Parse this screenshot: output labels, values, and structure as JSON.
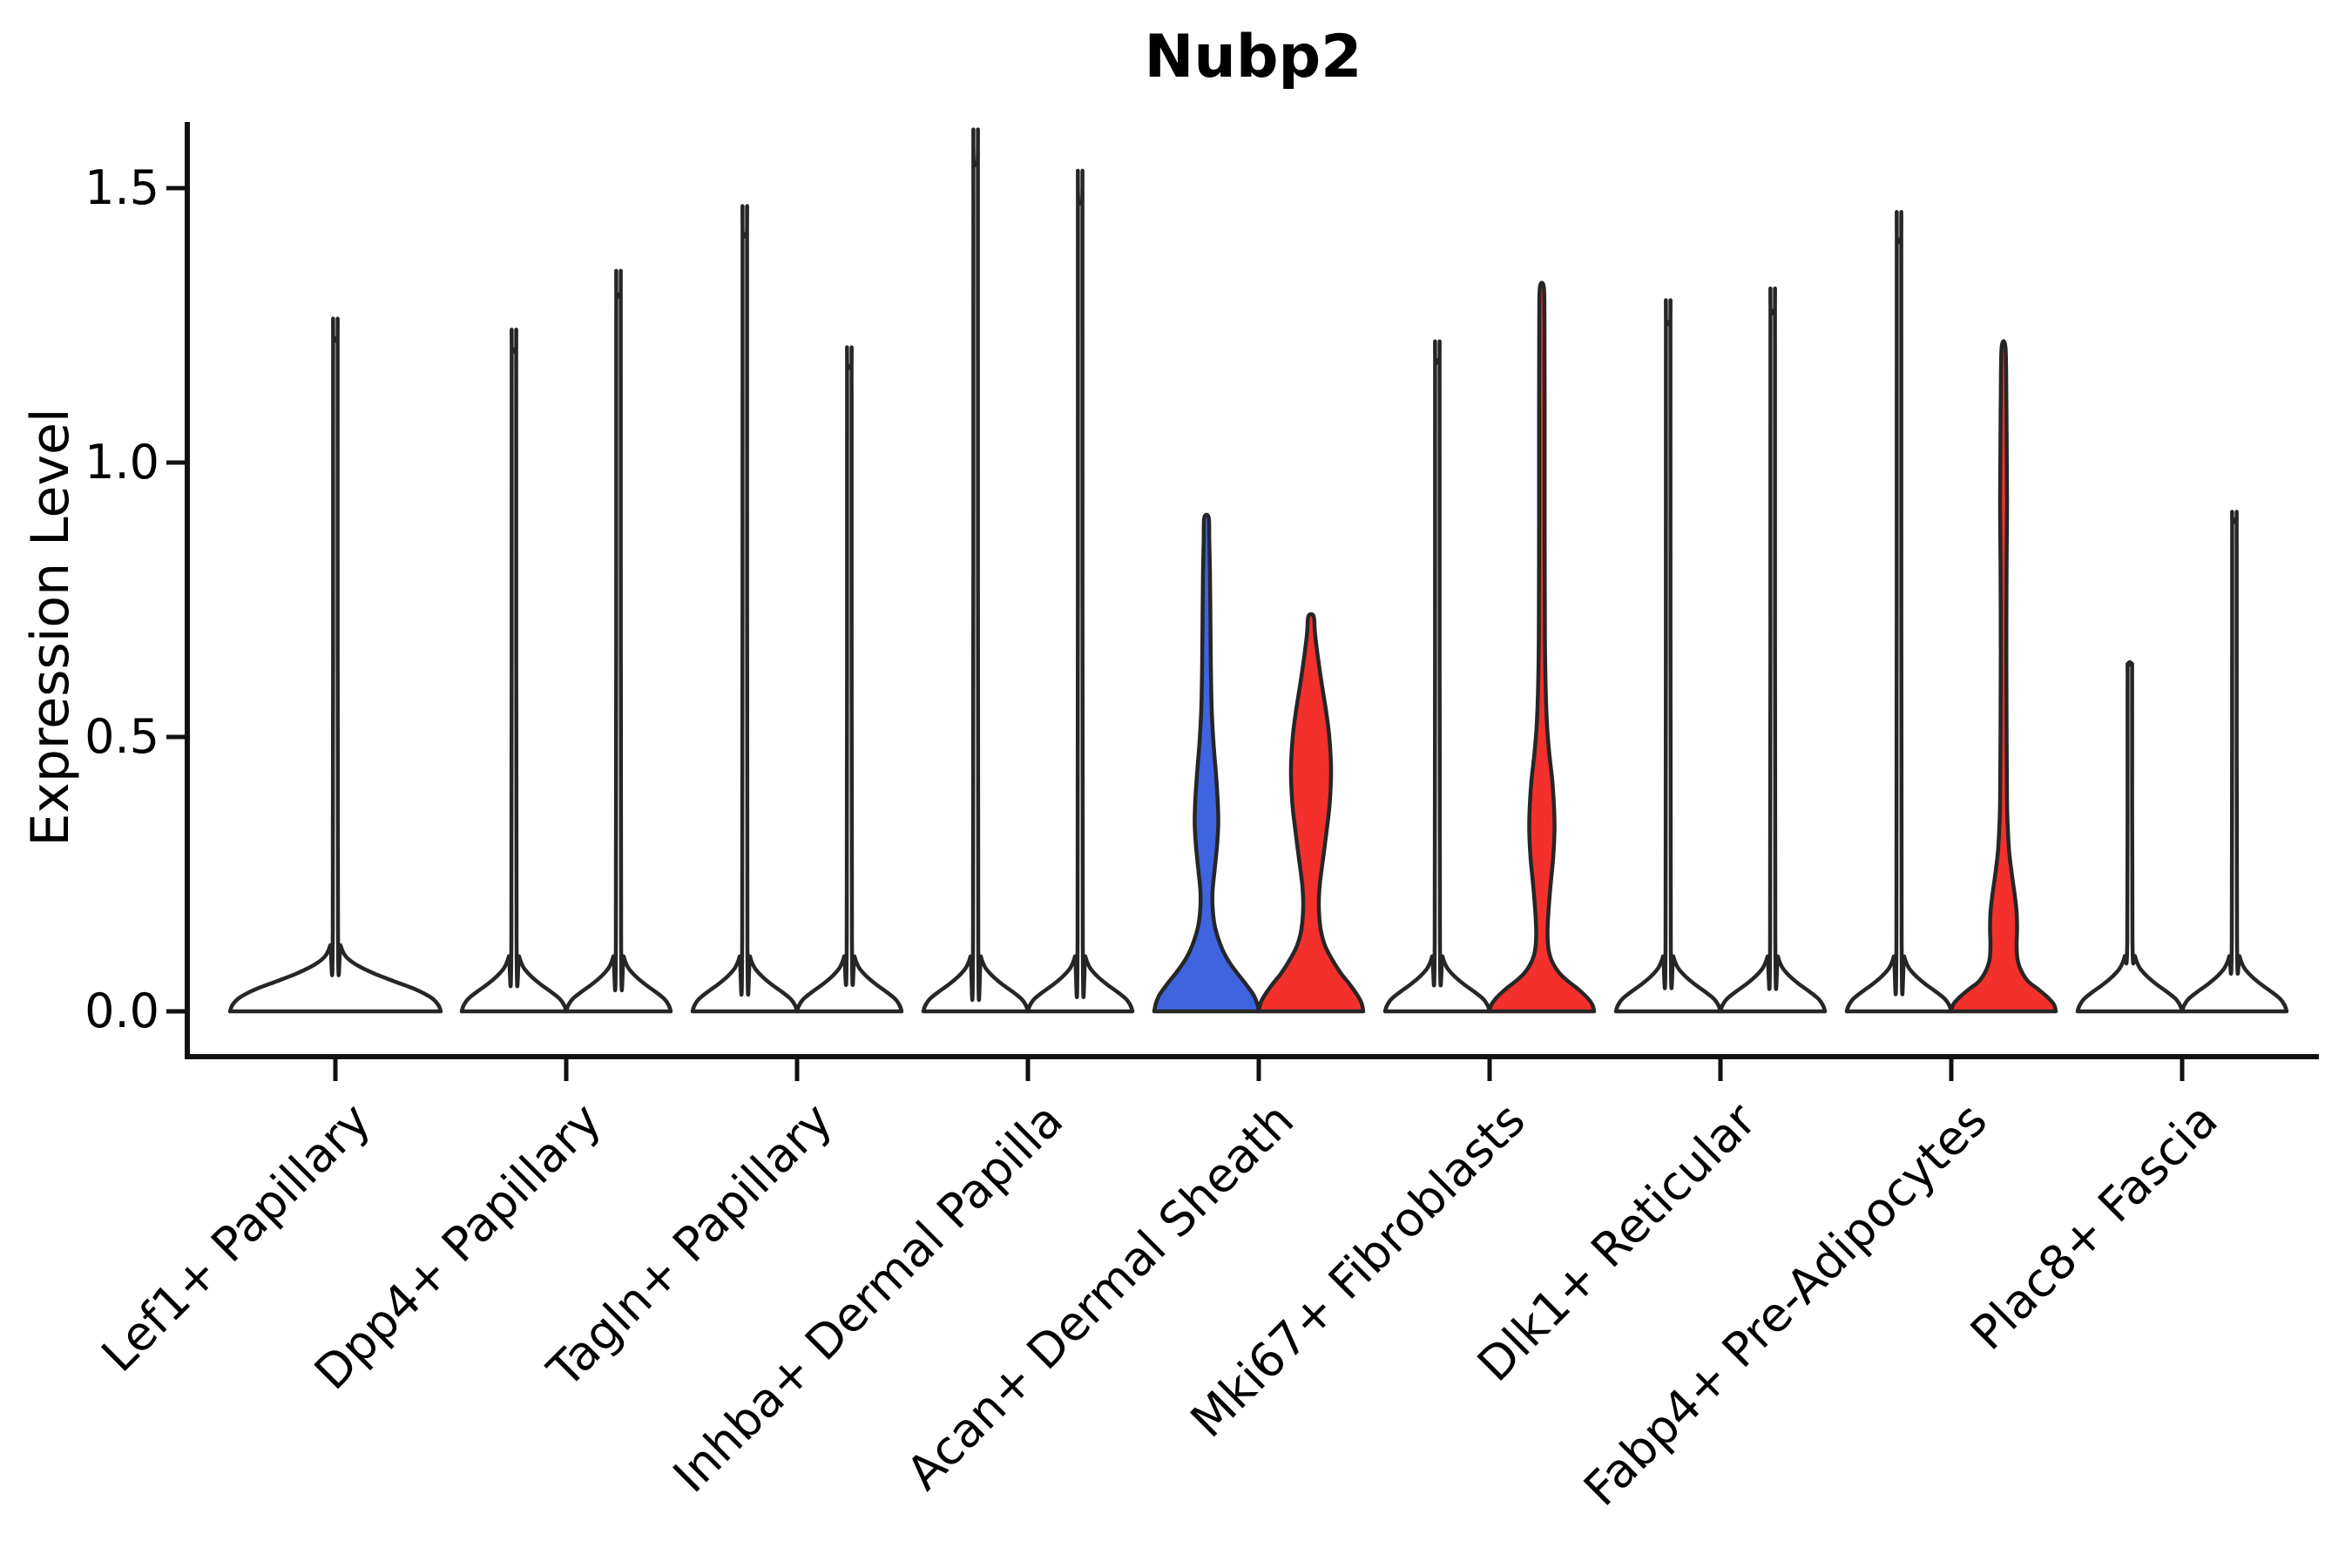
{
  "title": "Nubp2",
  "y_axis": {
    "label": "Expression Level",
    "tick_labels": [
      "0.0",
      "0.5",
      "1.0",
      "1.5"
    ],
    "tick_values": [
      0.0,
      0.5,
      1.0,
      1.5
    ]
  },
  "x_axis": {
    "categories": [
      "Lef1+ Papillary",
      "Dpp4+ Papillary",
      "Tagln+ Papillary",
      "Inhba+ Dermal Papilla",
      "Acan+ Dermal Sheath",
      "Mki67+ Fibroblasts",
      "Dlk1+ Reticular",
      "Fabp4+ Pre-Adipocytes",
      "Plac8+ Fascia"
    ]
  },
  "chart_data": {
    "type": "violin",
    "title": "Nubp2",
    "xlabel": "",
    "ylabel": "Expression Level",
    "ylim": [
      0,
      1.6
    ],
    "yticks": [
      0.0,
      0.5,
      1.0,
      1.5
    ],
    "grid": false,
    "legend": "none",
    "categories": [
      "Lef1+ Papillary",
      "Dpp4+ Papillary",
      "Tagln+ Papillary",
      "Inhba+ Dermal Papilla",
      "Acan+ Dermal Sheath",
      "Mki67+ Fibroblasts",
      "Dlk1+ Reticular",
      "Fabp4+ Pre-Adipocytes",
      "Plac8+ Fascia"
    ],
    "colors": {
      "white": "#ffffff",
      "blue": "#3e64e0",
      "red": "#f3302c",
      "outline": "#262626"
    },
    "violins": [
      {
        "category": "Lef1+ Papillary",
        "category_index": 0,
        "side": 0,
        "fill": "white",
        "max_expression": 1.22,
        "profile": [
          [
            0,
            121
          ],
          [
            0.012,
            118
          ],
          [
            0.025,
            110
          ],
          [
            0.04,
            92
          ],
          [
            0.055,
            67
          ],
          [
            0.07,
            43
          ],
          [
            0.085,
            24
          ],
          [
            0.1,
            12
          ],
          [
            0.12,
            6
          ],
          [
            0.15,
            3
          ],
          [
            1.17,
            2.6
          ],
          [
            1.22,
            2.2
          ]
        ]
      },
      {
        "category": "Dpp4+ Papillary",
        "category_index": 1,
        "side": -1,
        "fill": "white",
        "max_expression": 1.2,
        "profile": [
          [
            0,
            60
          ],
          [
            0.01,
            58
          ],
          [
            0.022,
            53
          ],
          [
            0.035,
            43
          ],
          [
            0.05,
            30
          ],
          [
            0.065,
            19
          ],
          [
            0.08,
            11
          ],
          [
            0.1,
            6
          ],
          [
            0.13,
            3
          ],
          [
            1.15,
            2.6
          ],
          [
            1.2,
            2.2
          ]
        ]
      },
      {
        "category": "Dpp4+ Papillary",
        "category_index": 1,
        "side": 1,
        "fill": "white",
        "max_expression": 1.3,
        "profile": [
          [
            0,
            60
          ],
          [
            0.01,
            58
          ],
          [
            0.022,
            53
          ],
          [
            0.035,
            43
          ],
          [
            0.05,
            30
          ],
          [
            0.065,
            19
          ],
          [
            0.08,
            11
          ],
          [
            0.1,
            6
          ],
          [
            0.13,
            3
          ],
          [
            1.25,
            2.6
          ],
          [
            1.3,
            2.2
          ]
        ]
      },
      {
        "category": "Tagln+ Papillary",
        "category_index": 2,
        "side": -1,
        "fill": "white",
        "max_expression": 1.41,
        "profile": [
          [
            0,
            60
          ],
          [
            0.01,
            58
          ],
          [
            0.022,
            53
          ],
          [
            0.035,
            43
          ],
          [
            0.05,
            30
          ],
          [
            0.065,
            19
          ],
          [
            0.08,
            11
          ],
          [
            0.1,
            6
          ],
          [
            0.13,
            3
          ],
          [
            1.36,
            2.6
          ],
          [
            1.41,
            2.2
          ]
        ]
      },
      {
        "category": "Tagln+ Papillary",
        "category_index": 2,
        "side": 1,
        "fill": "white",
        "max_expression": 1.17,
        "profile": [
          [
            0,
            60
          ],
          [
            0.01,
            58
          ],
          [
            0.022,
            53
          ],
          [
            0.035,
            43
          ],
          [
            0.05,
            30
          ],
          [
            0.065,
            19
          ],
          [
            0.08,
            11
          ],
          [
            0.1,
            6
          ],
          [
            0.13,
            3
          ],
          [
            1.12,
            2.6
          ],
          [
            1.17,
            2.2
          ]
        ]
      },
      {
        "category": "Inhba+ Dermal Papilla",
        "category_index": 3,
        "side": -1,
        "fill": "white",
        "max_expression": 1.54,
        "profile": [
          [
            0,
            60
          ],
          [
            0.01,
            58
          ],
          [
            0.022,
            53
          ],
          [
            0.035,
            43
          ],
          [
            0.05,
            30
          ],
          [
            0.065,
            19
          ],
          [
            0.08,
            11
          ],
          [
            0.1,
            6
          ],
          [
            0.13,
            3
          ],
          [
            1.49,
            2.6
          ],
          [
            1.54,
            2.2
          ]
        ]
      },
      {
        "category": "Inhba+ Dermal Papilla",
        "category_index": 3,
        "side": 1,
        "fill": "white",
        "max_expression": 1.47,
        "profile": [
          [
            0,
            60
          ],
          [
            0.01,
            58
          ],
          [
            0.022,
            53
          ],
          [
            0.035,
            43
          ],
          [
            0.05,
            30
          ],
          [
            0.065,
            19
          ],
          [
            0.08,
            11
          ],
          [
            0.1,
            6
          ],
          [
            0.13,
            3
          ],
          [
            1.42,
            2.6
          ],
          [
            1.47,
            2.2
          ]
        ]
      },
      {
        "category": "Acan+ Dermal Sheath",
        "category_index": 4,
        "side": -1,
        "fill": "blue",
        "max_expression": 0.9,
        "profile": [
          [
            0,
            60
          ],
          [
            0.015,
            58
          ],
          [
            0.03,
            54
          ],
          [
            0.05,
            45
          ],
          [
            0.07,
            35
          ],
          [
            0.09,
            26
          ],
          [
            0.11,
            19
          ],
          [
            0.135,
            13
          ],
          [
            0.16,
            9
          ],
          [
            0.19,
            7
          ],
          [
            0.22,
            7
          ],
          [
            0.26,
            9.5
          ],
          [
            0.3,
            12
          ],
          [
            0.34,
            13.5
          ],
          [
            0.38,
            13
          ],
          [
            0.43,
            11
          ],
          [
            0.49,
            8
          ],
          [
            0.55,
            6
          ],
          [
            0.63,
            5
          ],
          [
            0.72,
            4.5
          ],
          [
            0.8,
            4
          ],
          [
            0.86,
            3.2
          ],
          [
            0.9,
            2.5
          ]
        ]
      },
      {
        "category": "Acan+ Dermal Sheath",
        "category_index": 4,
        "side": 1,
        "fill": "red",
        "max_expression": 0.72,
        "profile": [
          [
            0,
            60
          ],
          [
            0.015,
            58
          ],
          [
            0.03,
            53
          ],
          [
            0.05,
            44
          ],
          [
            0.07,
            34
          ],
          [
            0.095,
            24
          ],
          [
            0.12,
            16
          ],
          [
            0.15,
            11
          ],
          [
            0.19,
            9
          ],
          [
            0.23,
            10
          ],
          [
            0.28,
            14
          ],
          [
            0.33,
            18
          ],
          [
            0.38,
            21.5
          ],
          [
            0.44,
            23
          ],
          [
            0.5,
            21
          ],
          [
            0.55,
            17
          ],
          [
            0.6,
            12
          ],
          [
            0.65,
            7.5
          ],
          [
            0.69,
            4.5
          ],
          [
            0.72,
            3
          ]
        ]
      },
      {
        "category": "Mki67+ Fibroblasts",
        "category_index": 5,
        "side": -1,
        "fill": "white",
        "max_expression": 1.18,
        "profile": [
          [
            0,
            60
          ],
          [
            0.01,
            58
          ],
          [
            0.022,
            53
          ],
          [
            0.035,
            43
          ],
          [
            0.05,
            30
          ],
          [
            0.065,
            19
          ],
          [
            0.08,
            11
          ],
          [
            0.1,
            6
          ],
          [
            0.13,
            3
          ],
          [
            1.13,
            2.6
          ],
          [
            1.18,
            2.2
          ]
        ]
      },
      {
        "category": "Mki67+ Fibroblasts",
        "category_index": 5,
        "side": 1,
        "fill": "red",
        "max_expression": 1.32,
        "profile": [
          [
            0,
            60
          ],
          [
            0.012,
            58
          ],
          [
            0.025,
            52
          ],
          [
            0.04,
            42
          ],
          [
            0.055,
            30
          ],
          [
            0.07,
            20
          ],
          [
            0.09,
            12
          ],
          [
            0.11,
            8
          ],
          [
            0.14,
            6.5
          ],
          [
            0.18,
            7.5
          ],
          [
            0.23,
            10
          ],
          [
            0.28,
            13
          ],
          [
            0.33,
            14.5
          ],
          [
            0.37,
            14
          ],
          [
            0.42,
            12
          ],
          [
            0.47,
            8.5
          ],
          [
            0.52,
            6
          ],
          [
            0.58,
            4.5
          ],
          [
            0.68,
            3.5
          ],
          [
            0.9,
            3.2
          ],
          [
            1.1,
            3.2
          ],
          [
            1.26,
            3
          ],
          [
            1.32,
            2.2
          ]
        ]
      },
      {
        "category": "Dlk1+ Reticular",
        "category_index": 6,
        "side": -1,
        "fill": "white",
        "max_expression": 1.25,
        "profile": [
          [
            0,
            60
          ],
          [
            0.01,
            58
          ],
          [
            0.022,
            53
          ],
          [
            0.035,
            43
          ],
          [
            0.05,
            30
          ],
          [
            0.065,
            19
          ],
          [
            0.08,
            11
          ],
          [
            0.1,
            6
          ],
          [
            0.13,
            3
          ],
          [
            1.2,
            2.6
          ],
          [
            1.25,
            2.2
          ]
        ]
      },
      {
        "category": "Dlk1+ Reticular",
        "category_index": 6,
        "side": 1,
        "fill": "white",
        "max_expression": 1.27,
        "profile": [
          [
            0,
            60
          ],
          [
            0.01,
            58
          ],
          [
            0.022,
            53
          ],
          [
            0.035,
            43
          ],
          [
            0.05,
            30
          ],
          [
            0.065,
            19
          ],
          [
            0.08,
            11
          ],
          [
            0.1,
            6
          ],
          [
            0.13,
            3
          ],
          [
            1.22,
            2.6
          ],
          [
            1.27,
            2.2
          ]
        ]
      },
      {
        "category": "Fabp4+ Pre-Adipocytes",
        "category_index": 7,
        "side": -1,
        "fill": "white",
        "max_expression": 1.4,
        "profile": [
          [
            0,
            60
          ],
          [
            0.01,
            58
          ],
          [
            0.022,
            53
          ],
          [
            0.035,
            43
          ],
          [
            0.05,
            30
          ],
          [
            0.065,
            19
          ],
          [
            0.08,
            11
          ],
          [
            0.1,
            6
          ],
          [
            0.13,
            3
          ],
          [
            1.35,
            2.6
          ],
          [
            1.4,
            2.2
          ]
        ]
      },
      {
        "category": "Fabp4+ Pre-Adipocytes",
        "category_index": 7,
        "side": 1,
        "fill": "red",
        "max_expression": 1.21,
        "profile": [
          [
            0,
            60
          ],
          [
            0.012,
            58
          ],
          [
            0.025,
            51
          ],
          [
            0.04,
            40
          ],
          [
            0.055,
            28
          ],
          [
            0.075,
            20
          ],
          [
            0.095,
            16
          ],
          [
            0.12,
            15
          ],
          [
            0.15,
            15.5
          ],
          [
            0.18,
            15
          ],
          [
            0.21,
            13
          ],
          [
            0.25,
            9.5
          ],
          [
            0.29,
            6.5
          ],
          [
            0.33,
            5
          ],
          [
            0.38,
            4
          ],
          [
            0.5,
            3.5
          ],
          [
            0.65,
            3.2
          ],
          [
            0.82,
            3.5
          ],
          [
            0.93,
            4
          ],
          [
            1.03,
            3.6
          ],
          [
            1.12,
            3.2
          ],
          [
            1.21,
            2.2
          ]
        ]
      },
      {
        "category": "Plac8+ Fascia",
        "category_index": 8,
        "side": -1,
        "fill": "white",
        "max_expression": 0.63,
        "profile": [
          [
            0,
            60
          ],
          [
            0.01,
            58
          ],
          [
            0.022,
            53
          ],
          [
            0.035,
            43
          ],
          [
            0.05,
            30
          ],
          [
            0.065,
            19
          ],
          [
            0.08,
            11
          ],
          [
            0.1,
            6
          ],
          [
            0.13,
            3
          ],
          [
            0.58,
            2.6
          ],
          [
            0.63,
            2.2
          ]
        ]
      },
      {
        "category": "Plac8+ Fascia",
        "category_index": 8,
        "side": 1,
        "fill": "white",
        "max_expression": 0.89,
        "profile": [
          [
            0,
            60
          ],
          [
            0.01,
            58
          ],
          [
            0.022,
            53
          ],
          [
            0.035,
            43
          ],
          [
            0.05,
            30
          ],
          [
            0.065,
            19
          ],
          [
            0.08,
            11
          ],
          [
            0.1,
            6
          ],
          [
            0.13,
            3
          ],
          [
            0.84,
            2.6
          ],
          [
            0.89,
            2.2
          ]
        ]
      }
    ]
  }
}
